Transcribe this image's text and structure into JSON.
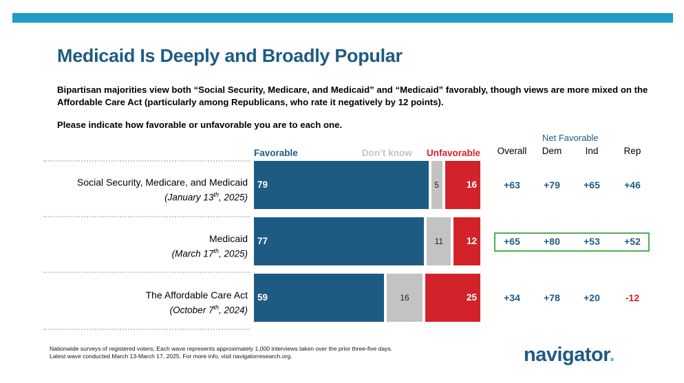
{
  "header": {
    "title": "Medicaid Is Deeply and Broadly Popular",
    "subtitle": "Bipartisan majorities view both “Social Security, Medicare, and Medicaid” and “Medicaid” favorably, though views are more mixed on the Affordable Care Act (particularly among Republicans, who rate it negatively by 12 points).",
    "question": "Please indicate how favorable or unfavorable you are to each one."
  },
  "legend": {
    "favorable": "Favorable",
    "dont_know": "Don’t know",
    "unfavorable": "Unfavorable"
  },
  "net_table": {
    "title": "Net Favorable",
    "columns": [
      "Overall",
      "Dem",
      "Ind",
      "Rep"
    ]
  },
  "rows": [
    {
      "name": "Social Security, Medicare, and Medicaid",
      "date_prefix": "(January 13",
      "date_sup": "th",
      "date_suffix": ", 2025)"
    },
    {
      "name": "Medicaid",
      "date_prefix": "(March 17",
      "date_sup": "th",
      "date_suffix": ", 2025)"
    },
    {
      "name": "The Affordable Care Act",
      "date_prefix": "(October 7",
      "date_sup": "th",
      "date_suffix": ", 2024)"
    }
  ],
  "chart_data": {
    "type": "bar",
    "orientation": "horizontal-stacked",
    "categories": [
      "Social Security, Medicare, and Medicaid",
      "Medicaid",
      "The Affordable Care Act"
    ],
    "series": [
      {
        "name": "Favorable",
        "values": [
          79,
          77,
          59
        ]
      },
      {
        "name": "Don’t know",
        "values": [
          5,
          11,
          16
        ]
      },
      {
        "name": "Unfavorable",
        "values": [
          16,
          12,
          25
        ]
      }
    ],
    "net_favorable": {
      "Overall": [
        "+63",
        "+65",
        "+34"
      ],
      "Dem": [
        "+79",
        "+80",
        "+78"
      ],
      "Ind": [
        "+65",
        "+53",
        "+20"
      ],
      "Rep": [
        "+46",
        "+52",
        "-12"
      ]
    },
    "highlighted_row": "Medicaid",
    "colors": {
      "favorable": "#1e5b82",
      "dont_know": "#c3c3c3",
      "unfavorable": "#d2232a",
      "highlight": "#4caf50",
      "negative": "#d2232a"
    }
  },
  "footer": {
    "note_line1": "Nationwide surveys of registered voters; Each wave represents approximately 1,000 interviews taken over the prior three-five days.",
    "note_line2": "Latest wave conducted March 13-March 17, 2025. For more info, visit navigatorresearch.org.",
    "logo_text": "navigator",
    "logo_dot": "."
  },
  "colors": {
    "title": "#1e5b82",
    "topbar": "#1f9cc7"
  }
}
